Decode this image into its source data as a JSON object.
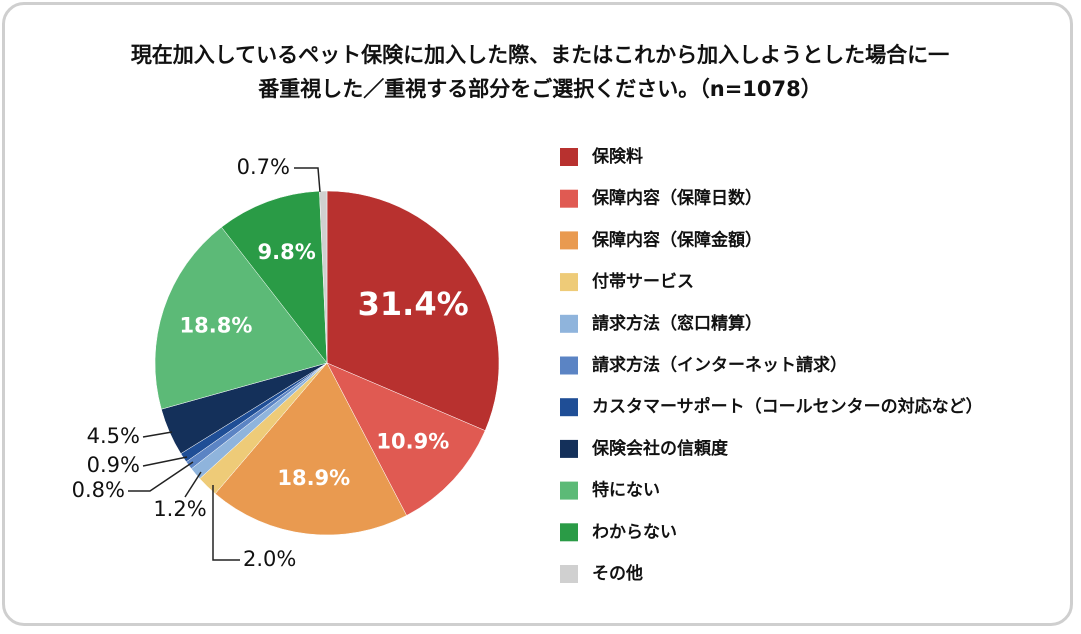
{
  "chart_data": {
    "type": "pie",
    "title": "現在加入しているペット保険に加入した際、またはこれから加入しようとした場合に一番重視した／重視する部分をご選択ください。（n=1078）",
    "categories": [
      "保険料",
      "保障内容（保障日数）",
      "保障内容（保障金額）",
      "付帯サービス",
      "請求方法（窓口精算）",
      "請求方法（インターネット請求）",
      "カスタマーサポート（コールセンターの対応など）",
      "保険会社の信頼度",
      "特にない",
      "わからない",
      "その他"
    ],
    "values": [
      31.4,
      10.9,
      18.9,
      2.0,
      1.2,
      0.8,
      0.9,
      4.5,
      18.8,
      9.8,
      0.7
    ],
    "value_labels": [
      "31.4%",
      "10.9%",
      "18.9%",
      "2.0%",
      "1.2%",
      "0.8%",
      "0.9%",
      "4.5%",
      "18.8%",
      "9.8%",
      "0.7%"
    ],
    "colors": [
      "#b8312f",
      "#e05a52",
      "#e99a50",
      "#eecb78",
      "#8fb4dc",
      "#5b84c4",
      "#1f4e96",
      "#14305a",
      "#5cba77",
      "#2a9b46",
      "#d0d0d0"
    ],
    "legend": "right"
  }
}
